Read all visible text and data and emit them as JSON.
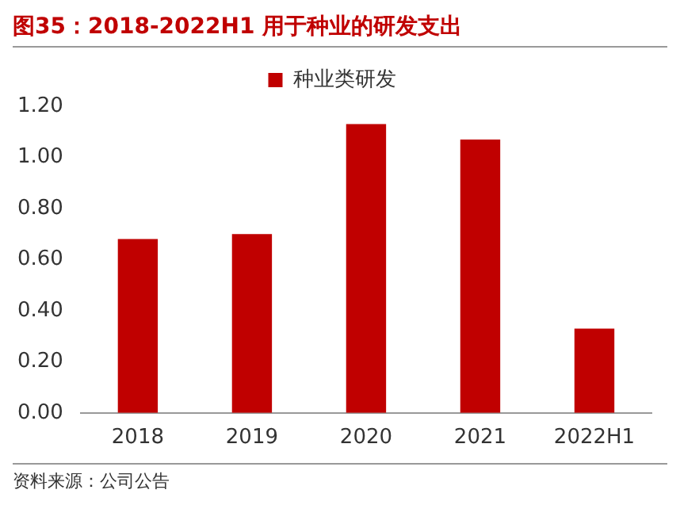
{
  "chart_data": {
    "type": "bar",
    "title": "图35：2018-2022H1 用于种业的研发支出",
    "categories": [
      "2018",
      "2019",
      "2020",
      "2021",
      "2022H1"
    ],
    "series": [
      {
        "name": "种业类研发",
        "color": "#c00000",
        "values": [
          0.68,
          0.7,
          1.13,
          1.07,
          0.33
        ]
      }
    ],
    "ylim": [
      0,
      1.2
    ],
    "yticks": [
      {
        "value": 0,
        "label": "0.00"
      },
      {
        "value": 0.2,
        "label": "0.20"
      },
      {
        "value": 0.4,
        "label": "0.40"
      },
      {
        "value": 0.6,
        "label": "0.60"
      },
      {
        "value": 0.8,
        "label": "0.80"
      },
      {
        "value": 1.0,
        "label": "1.00"
      },
      {
        "value": 1.2,
        "label": "1.20"
      }
    ],
    "legend": "top",
    "grid": false,
    "annotations": [
      "资料来源：公司公告"
    ]
  }
}
